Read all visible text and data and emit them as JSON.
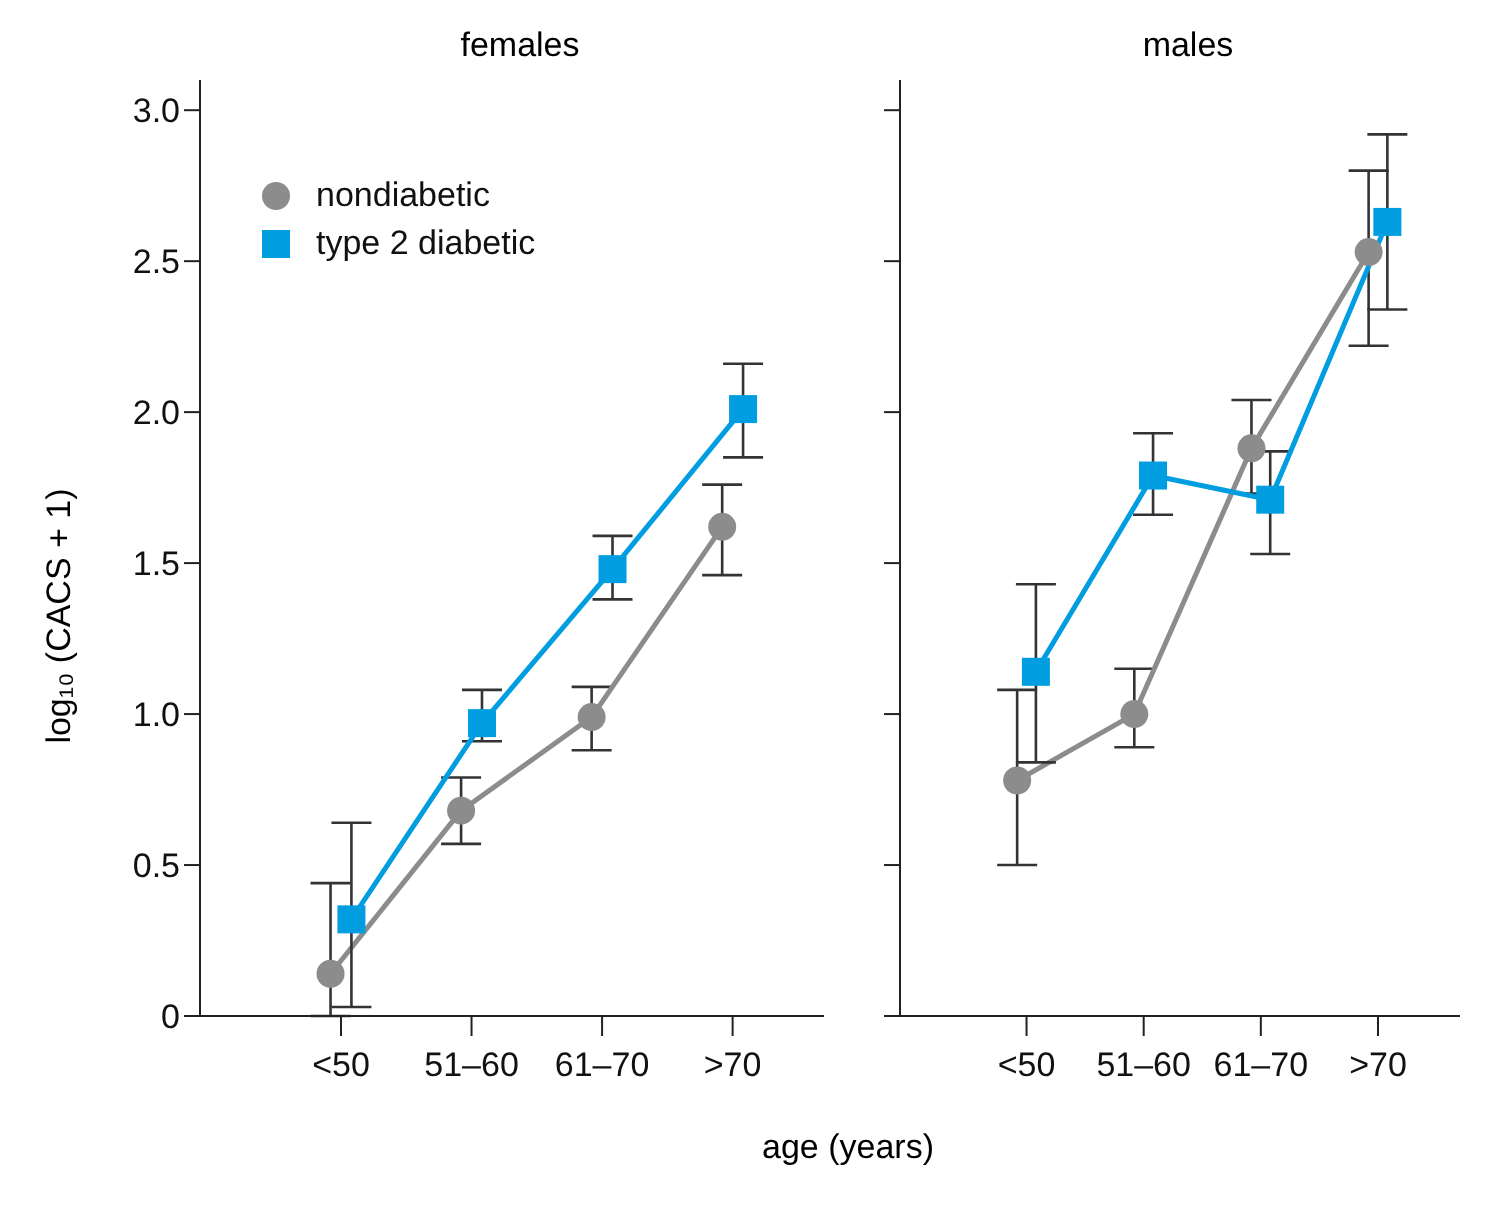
{
  "chart_data": [
    {
      "type": "line",
      "title": "females",
      "xlabel": "age (years)",
      "ylabel": "log₁₀ (CACS + 1)",
      "categories": [
        "<50",
        "51–60",
        "61–70",
        ">70"
      ],
      "ylim": [
        0,
        3.1
      ],
      "yticks": [
        0,
        {
          "value": 0.5,
          "label": "0.5"
        },
        {
          "value": 1,
          "label": "1.0"
        },
        {
          "value": 1.5,
          "label": "1.5"
        },
        {
          "value": 2,
          "label": "2.0"
        },
        {
          "value": 2.5,
          "label": "2.5"
        },
        {
          "value": 3,
          "label": "3.0"
        }
      ],
      "grid": false,
      "legend": "top left",
      "series": [
        {
          "name": "nondiabetic",
          "color": "#8c8c8c",
          "marker": "circle",
          "values": [
            0.14,
            0.68,
            0.99,
            1.62
          ],
          "errors": [
            [
              0,
              0.44
            ],
            [
              0.57,
              0.79
            ],
            [
              0.88,
              1.09
            ],
            [
              1.46,
              1.76
            ]
          ]
        },
        {
          "name": "type 2 diabetic",
          "color": "#009ee0",
          "marker": "square",
          "values": [
            0.32,
            0.97,
            1.48,
            2.01
          ],
          "errors": [
            [
              0.03,
              0.64
            ],
            [
              0.91,
              1.08
            ],
            [
              1.38,
              1.59
            ],
            [
              1.85,
              2.16
            ]
          ]
        }
      ]
    },
    {
      "type": "line",
      "title": "males",
      "categories": [
        "<50",
        "51–60",
        "61–70",
        ">70"
      ],
      "ylim": [
        0,
        3.1
      ],
      "yticks": [
        0,
        0.5,
        1,
        1.5,
        2,
        2.5,
        3
      ],
      "grid": false,
      "tick_labels": "x",
      "series": [
        {
          "color": "#8c8c8c",
          "marker": "circle",
          "values": [
            0.78,
            1.0,
            1.88,
            2.53
          ],
          "errors": [
            [
              0.5,
              1.08
            ],
            [
              0.89,
              1.15
            ],
            [
              1.73,
              2.04
            ],
            [
              2.22,
              2.8
            ]
          ]
        },
        {
          "color": "#009ee0",
          "marker": "square",
          "values": [
            1.14,
            1.79,
            1.71,
            2.63
          ],
          "errors": [
            [
              0.84,
              1.43
            ],
            [
              1.66,
              1.93
            ],
            [
              1.53,
              1.87
            ],
            [
              2.34,
              2.92
            ]
          ]
        }
      ]
    }
  ]
}
